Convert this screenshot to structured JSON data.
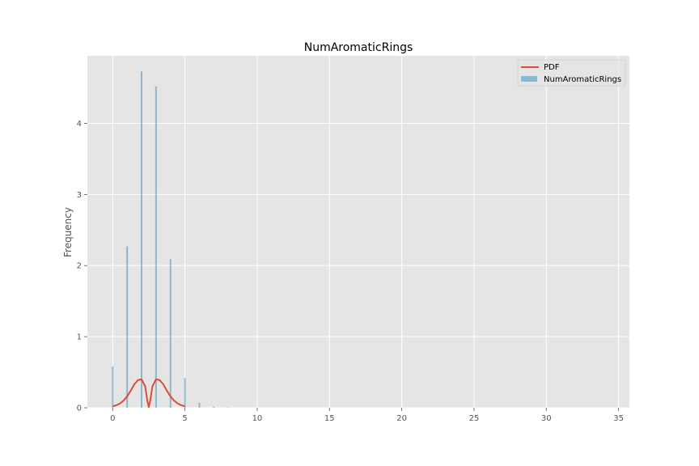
{
  "chart_data": {
    "type": "bar",
    "title": "NumAromaticRings",
    "xlabel": "",
    "ylabel": "Frequency",
    "xlim": [
      -1.75,
      35.75
    ],
    "ylim": [
      0,
      4.95
    ],
    "xticks": [
      0,
      5,
      10,
      15,
      20,
      25,
      30,
      35
    ],
    "yticks": [
      0,
      1,
      2,
      3,
      4
    ],
    "grid": true,
    "legend_position": "top-right",
    "histogram": {
      "name": "NumAromaticRings",
      "color": "#348ABD",
      "bins": [
        {
          "x": 0,
          "value": 0.58
        },
        {
          "x": 1,
          "value": 2.27
        },
        {
          "x": 2,
          "value": 4.73
        },
        {
          "x": 3,
          "value": 4.52
        },
        {
          "x": 4,
          "value": 2.09
        },
        {
          "x": 5,
          "value": 0.42
        },
        {
          "x": 6,
          "value": 0.07
        },
        {
          "x": 7,
          "value": 0.015
        },
        {
          "x": 8,
          "value": 0.005
        }
      ]
    },
    "pdf": {
      "name": "PDF",
      "color": "#E24A33",
      "x": [
        0,
        0.25,
        0.5,
        0.75,
        1.0,
        1.25,
        1.5,
        1.75,
        2.0,
        2.25,
        2.4,
        2.5,
        2.6,
        2.75,
        3.0,
        3.25,
        3.5,
        3.75,
        4.0,
        4.25,
        4.5,
        4.75,
        5.0
      ],
      "y": [
        0.02,
        0.035,
        0.06,
        0.1,
        0.16,
        0.24,
        0.33,
        0.39,
        0.4,
        0.3,
        0.1,
        0.01,
        0.1,
        0.3,
        0.4,
        0.39,
        0.33,
        0.24,
        0.16,
        0.1,
        0.06,
        0.035,
        0.02
      ]
    }
  }
}
